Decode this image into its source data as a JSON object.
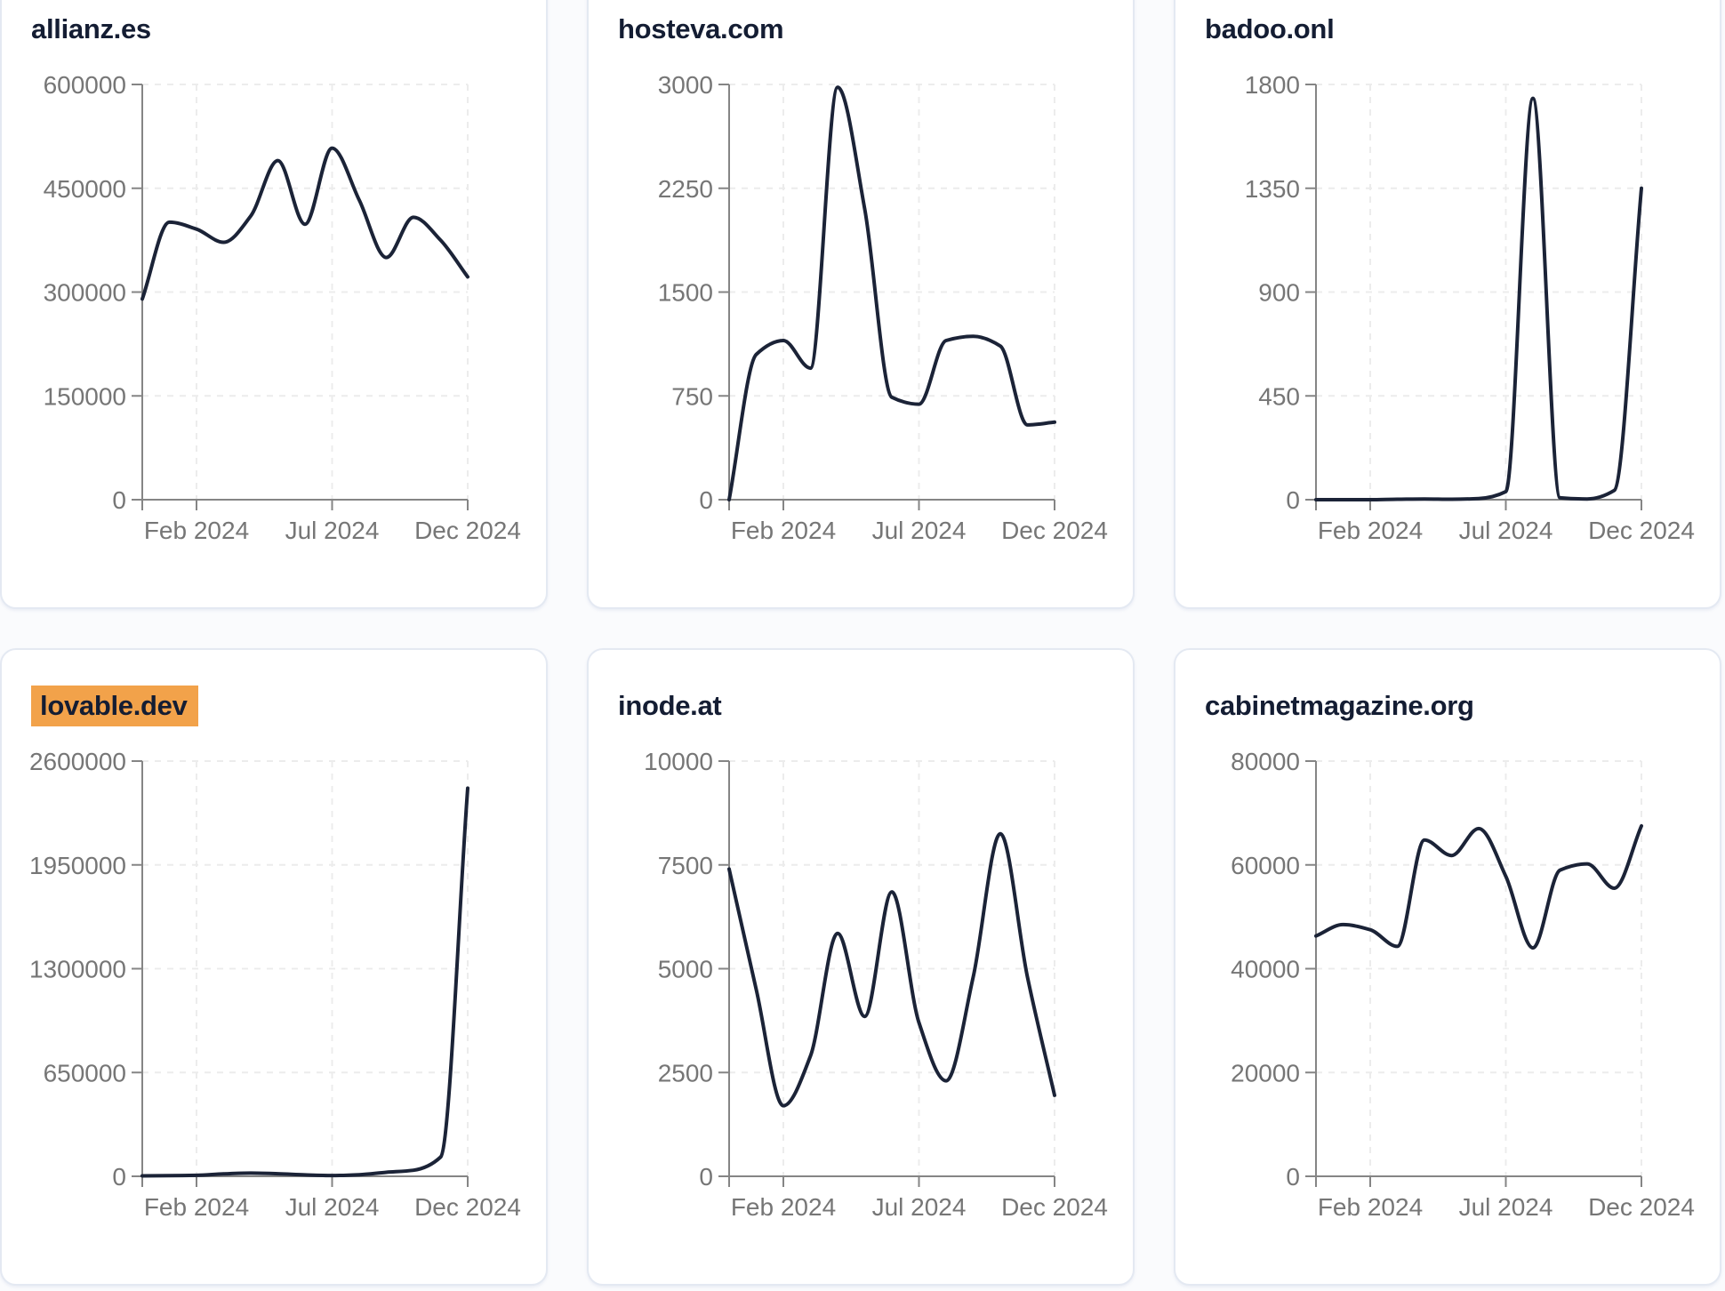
{
  "page": {
    "background": "#fafbfd"
  },
  "theme": {
    "card_bg": "#ffffff",
    "card_border": "#e4e9f2",
    "title_color": "#141d33",
    "line_color": "#1b2337",
    "axis_color": "#858585",
    "tick_label_color": "#767676",
    "grid_color": "#ececec",
    "highlight_color": "#f2a24a",
    "tick_font_size": 28
  },
  "chart_data": [
    {
      "type": "line",
      "title": "allianz.es",
      "title_highlighted": false,
      "x": [
        "Dec 2023",
        "Jan 2024",
        "Feb 2024",
        "Mar 2024",
        "Apr 2024",
        "May 2024",
        "Jun 2024",
        "Jul 2024",
        "Aug 2024",
        "Sep 2024",
        "Oct 2024",
        "Nov 2024",
        "Dec 2024"
      ],
      "values": [
        290000,
        401000,
        391000,
        372000,
        410000,
        490000,
        398000,
        508000,
        433000,
        350000,
        408000,
        375000,
        322000
      ],
      "y_ticks": [
        0,
        150000,
        300000,
        450000,
        600000
      ],
      "ylim": [
        0,
        600000
      ],
      "x_ticks": [
        {
          "index": 2,
          "label": "Feb 2024"
        },
        {
          "index": 7,
          "label": "Jul 2024"
        },
        {
          "index": 12,
          "label": "Dec 2024"
        }
      ],
      "grid": "dashed",
      "legend": "none"
    },
    {
      "type": "line",
      "title": "hosteva.com",
      "title_highlighted": false,
      "x": [
        "Dec 2023",
        "Jan 2024",
        "Feb 2024",
        "Mar 2024",
        "Apr 2024",
        "May 2024",
        "Jun 2024",
        "Jul 2024",
        "Aug 2024",
        "Sep 2024",
        "Oct 2024",
        "Nov 2024",
        "Dec 2024"
      ],
      "values": [
        0,
        1050,
        1150,
        950,
        2980,
        2100,
        740,
        690,
        1150,
        1180,
        1110,
        540,
        560
      ],
      "y_ticks": [
        0,
        750,
        1500,
        2250,
        3000
      ],
      "ylim": [
        0,
        3000
      ],
      "x_ticks": [
        {
          "index": 2,
          "label": "Feb 2024"
        },
        {
          "index": 7,
          "label": "Jul 2024"
        },
        {
          "index": 12,
          "label": "Dec 2024"
        }
      ],
      "grid": "dashed",
      "legend": "none"
    },
    {
      "type": "line",
      "title": "badoo.onl",
      "title_highlighted": false,
      "x": [
        "Dec 2023",
        "Jan 2024",
        "Feb 2024",
        "Mar 2024",
        "Apr 2024",
        "May 2024",
        "Jun 2024",
        "Jul 2024",
        "Aug 2024",
        "Sep 2024",
        "Oct 2024",
        "Nov 2024",
        "Dec 2024"
      ],
      "values": [
        0,
        0,
        0,
        2,
        3,
        2,
        5,
        35,
        1740,
        8,
        3,
        40,
        1350
      ],
      "y_ticks": [
        0,
        450,
        900,
        1350,
        1800
      ],
      "ylim": [
        0,
        1800
      ],
      "x_ticks": [
        {
          "index": 2,
          "label": "Feb 2024"
        },
        {
          "index": 7,
          "label": "Jul 2024"
        },
        {
          "index": 12,
          "label": "Dec 2024"
        }
      ],
      "grid": "dashed",
      "legend": "none"
    },
    {
      "type": "line",
      "title": "lovable.dev",
      "title_highlighted": true,
      "x": [
        "Dec 2023",
        "Jan 2024",
        "Feb 2024",
        "Mar 2024",
        "Apr 2024",
        "May 2024",
        "Jun 2024",
        "Jul 2024",
        "Aug 2024",
        "Sep 2024",
        "Oct 2024",
        "Nov 2024",
        "Dec 2024"
      ],
      "values": [
        3000,
        4000,
        6000,
        15000,
        20000,
        16000,
        9000,
        5000,
        10000,
        25000,
        38000,
        120000,
        2430000
      ],
      "y_ticks": [
        0,
        650000,
        1300000,
        1950000,
        2600000
      ],
      "ylim": [
        0,
        2600000
      ],
      "x_ticks": [
        {
          "index": 2,
          "label": "Feb 2024"
        },
        {
          "index": 7,
          "label": "Jul 2024"
        },
        {
          "index": 12,
          "label": "Dec 2024"
        }
      ],
      "grid": "dashed",
      "legend": "none"
    },
    {
      "type": "line",
      "title": "inode.at",
      "title_highlighted": false,
      "x": [
        "Dec 2023",
        "Jan 2024",
        "Feb 2024",
        "Mar 2024",
        "Apr 2024",
        "May 2024",
        "Jun 2024",
        "Jul 2024",
        "Aug 2024",
        "Sep 2024",
        "Oct 2024",
        "Nov 2024",
        "Dec 2024"
      ],
      "values": [
        7400,
        4500,
        1700,
        2900,
        5850,
        3850,
        6850,
        3700,
        2300,
        4800,
        8250,
        4800,
        1950
      ],
      "y_ticks": [
        0,
        2500,
        5000,
        7500,
        10000
      ],
      "ylim": [
        0,
        10000
      ],
      "x_ticks": [
        {
          "index": 2,
          "label": "Feb 2024"
        },
        {
          "index": 7,
          "label": "Jul 2024"
        },
        {
          "index": 12,
          "label": "Dec 2024"
        }
      ],
      "grid": "dashed",
      "legend": "none"
    },
    {
      "type": "line",
      "title": "cabinetmagazine.org",
      "title_highlighted": false,
      "x": [
        "Dec 2023",
        "Jan 2024",
        "Feb 2024",
        "Mar 2024",
        "Apr 2024",
        "May 2024",
        "Jun 2024",
        "Jul 2024",
        "Aug 2024",
        "Sep 2024",
        "Oct 2024",
        "Nov 2024",
        "Dec 2024"
      ],
      "values": [
        46300,
        48500,
        47500,
        44300,
        64800,
        61800,
        67000,
        57800,
        44000,
        59000,
        60200,
        55500,
        67500
      ],
      "y_ticks": [
        0,
        20000,
        40000,
        60000,
        80000
      ],
      "ylim": [
        0,
        80000
      ],
      "x_ticks": [
        {
          "index": 2,
          "label": "Feb 2024"
        },
        {
          "index": 7,
          "label": "Jul 2024"
        },
        {
          "index": 12,
          "label": "Dec 2024"
        }
      ],
      "grid": "dashed",
      "legend": "none"
    }
  ]
}
